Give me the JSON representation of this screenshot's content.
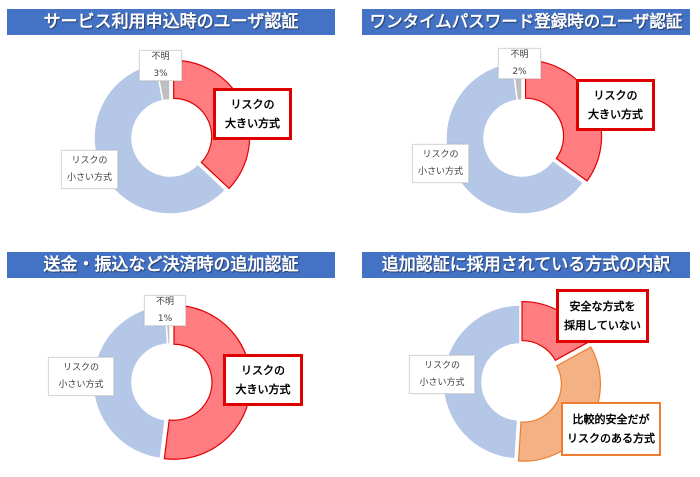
{
  "colors": {
    "title_bg": "#4472c4",
    "risk_high": "#ff7c80",
    "risk_high_stroke": "#e00000",
    "risk_low": "#b4c7e7",
    "unknown": "#bfbfbf",
    "relatively_safe": "#f4b183",
    "relatively_safe_stroke": "#ed7d31"
  },
  "chart_data": [
    {
      "type": "pie",
      "subtype": "donut",
      "title": "サービス利用申込時のユーザ認証",
      "series": [
        {
          "name": "リスクの大きい方式",
          "value": 37,
          "color": "#ff7c80",
          "exploded": true
        },
        {
          "name": "リスクの小さい方式",
          "value": 60,
          "color": "#b4c7e7"
        },
        {
          "name": "不明",
          "value": 3,
          "color": "#bfbfbf",
          "label": "3%"
        }
      ],
      "start_angle_deg": 0,
      "direction": "clockwise",
      "legend": "none (data callout labels)"
    },
    {
      "type": "pie",
      "subtype": "donut",
      "title": "ワンタイムパスワード登録時のユーザ認証",
      "series": [
        {
          "name": "リスクの大きい方式",
          "value": 35,
          "color": "#ff7c80",
          "exploded": true
        },
        {
          "name": "リスクの小さい方式",
          "value": 63,
          "color": "#b4c7e7"
        },
        {
          "name": "不明",
          "value": 2,
          "color": "#bfbfbf",
          "label": "2%"
        }
      ],
      "start_angle_deg": 0,
      "direction": "clockwise",
      "legend": "none (data callout labels)"
    },
    {
      "type": "pie",
      "subtype": "donut",
      "title": "送金・振込など決済時の追加認証",
      "series": [
        {
          "name": "リスクの大きい方式",
          "value": 52,
          "color": "#ff7c80",
          "exploded": true
        },
        {
          "name": "リスクの小さい方式",
          "value": 47,
          "color": "#b4c7e7"
        },
        {
          "name": "不明",
          "value": 1,
          "color": "#bfbfbf",
          "label": "1%"
        }
      ],
      "start_angle_deg": 0,
      "direction": "clockwise",
      "legend": "none (data callout labels)"
    },
    {
      "type": "pie",
      "subtype": "donut",
      "title": "追加認証に採用されている方式の内訳",
      "series": [
        {
          "name": "安全な方式を採用していない",
          "value": 17,
          "color": "#ff7c80",
          "exploded": true
        },
        {
          "name": "比較的安全だがリスクのある方式",
          "value": 34,
          "color": "#f4b183",
          "exploded": true
        },
        {
          "name": "リスクの小さい方式",
          "value": 49,
          "color": "#b4c7e7"
        }
      ],
      "start_angle_deg": 0,
      "direction": "clockwise",
      "legend": "none (data callout labels)"
    }
  ],
  "panels": [
    {
      "title": "サービス利用申込時のユーザ認証",
      "labels": {
        "unknown": {
          "line1": "不明",
          "line2": "3%"
        },
        "high": {
          "line1": "リスクの",
          "line2": "大きい方式"
        },
        "low": {
          "line1": "リスクの",
          "line2": "小さい方式"
        }
      }
    },
    {
      "title": "ワンタイムパスワード登録時のユーザ認証",
      "labels": {
        "unknown": {
          "line1": "不明",
          "line2": "2%"
        },
        "high": {
          "line1": "リスクの",
          "line2": "大きい方式"
        },
        "low": {
          "line1": "リスクの",
          "line2": "小さい方式"
        }
      }
    },
    {
      "title": "送金・振込など決済時の追加認証",
      "labels": {
        "unknown": {
          "line1": "不明",
          "line2": "1%"
        },
        "high": {
          "line1": "リスクの",
          "line2": "大きい方式"
        },
        "low": {
          "line1": "リスクの",
          "line2": "小さい方式"
        }
      }
    },
    {
      "title": "追加認証に採用されている方式の内訳",
      "labels": {
        "unsafe": {
          "line1": "安全な方式を",
          "line2": "採用していない"
        },
        "relative": {
          "line1": "比較的安全だが",
          "line2": "リスクのある方式"
        },
        "low": {
          "line1": "リスクの",
          "line2": "小さい方式"
        }
      }
    }
  ]
}
